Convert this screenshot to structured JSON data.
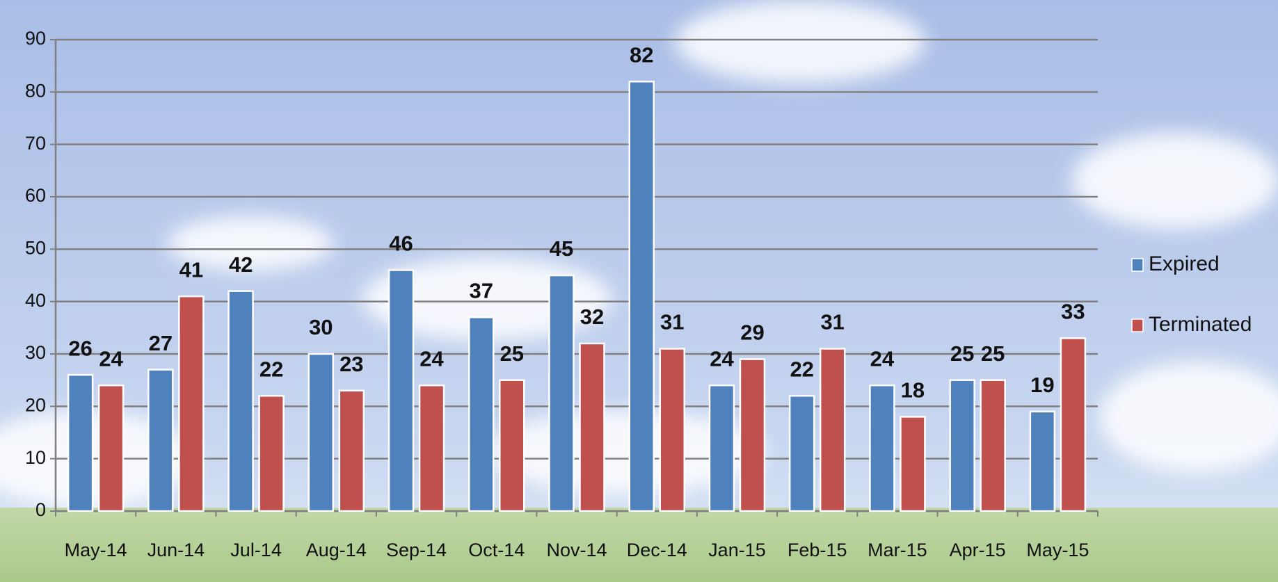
{
  "chart_data": {
    "type": "bar",
    "categories": [
      "May-14",
      "Jun-14",
      "Jul-14",
      "Aug-14",
      "Sep-14",
      "Oct-14",
      "Nov-14",
      "Dec-14",
      "Jan-15",
      "Feb-15",
      "Mar-15",
      "Apr-15",
      "May-15"
    ],
    "series": [
      {
        "name": "Expired",
        "color": "#4f81bd",
        "values": [
          26,
          27,
          42,
          30,
          46,
          37,
          45,
          82,
          24,
          22,
          24,
          25,
          19
        ]
      },
      {
        "name": "Terminated",
        "color": "#c0504d",
        "values": [
          24,
          41,
          22,
          23,
          24,
          25,
          32,
          31,
          29,
          31,
          18,
          25,
          33
        ]
      }
    ],
    "ylim": [
      0,
      90
    ],
    "yticks": [
      0,
      10,
      20,
      30,
      40,
      50,
      60,
      70,
      80,
      90
    ],
    "grid": true,
    "legend": "right"
  }
}
